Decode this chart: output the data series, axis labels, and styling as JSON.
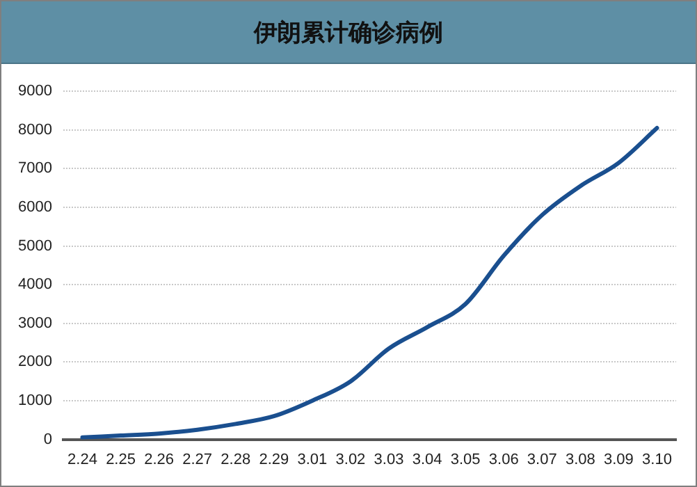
{
  "chart_data": {
    "type": "line",
    "title": "伊朗累计确诊病例",
    "categories": [
      "2.24",
      "2.25",
      "2.26",
      "2.27",
      "2.28",
      "2.29",
      "3.01",
      "3.02",
      "3.03",
      "3.04",
      "3.05",
      "3.06",
      "3.07",
      "3.08",
      "3.09",
      "3.10"
    ],
    "series": [
      {
        "color": "#1a4f8f",
        "values": [
          50,
          100,
          150,
          250,
          400,
          600,
          1000,
          1500,
          2350,
          2900,
          3500,
          4750,
          5800,
          6550,
          7150,
          8050
        ]
      }
    ],
    "ylim": [
      0,
      9000
    ],
    "yticks": [
      0,
      1000,
      2000,
      3000,
      4000,
      5000,
      6000,
      7000,
      8000,
      9000
    ],
    "grid": "y",
    "legend": false,
    "marker": "none",
    "line_style": "solid"
  }
}
